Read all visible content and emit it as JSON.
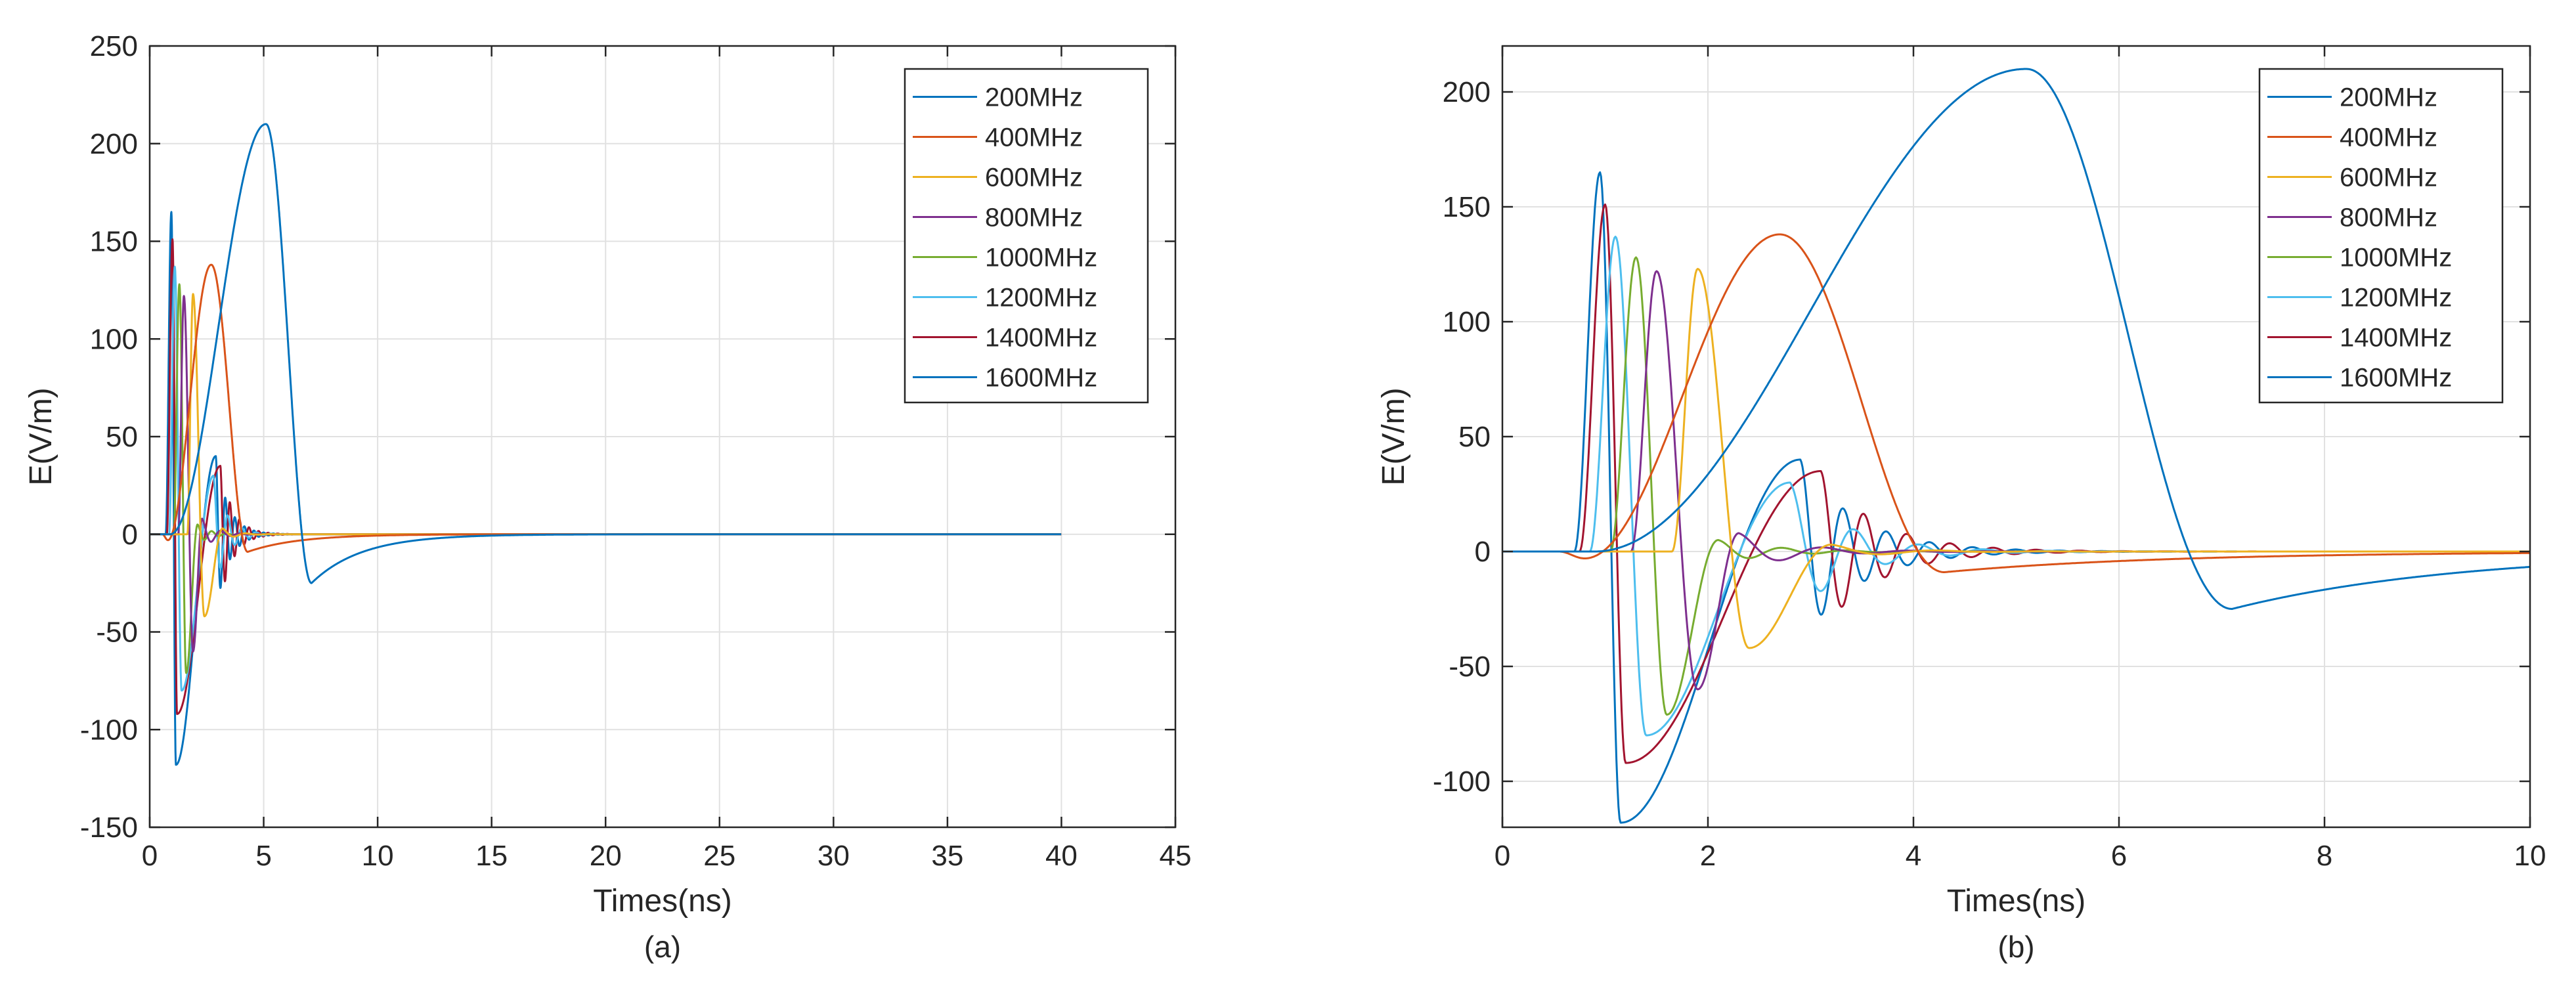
{
  "chart_data": [
    {
      "type": "line",
      "caption": "(a)",
      "xlabel": "Times(ns)",
      "ylabel": "E(V/m)",
      "xlim": [
        0,
        45
      ],
      "ylim": [
        -150,
        250
      ],
      "xticks": [
        0,
        5,
        10,
        15,
        20,
        25,
        30,
        35,
        40,
        45
      ],
      "yticks": [
        -150,
        -100,
        -50,
        0,
        50,
        100,
        150,
        200,
        250
      ],
      "grid": true,
      "legend_position": "top-right",
      "data_end_ns": 40,
      "series": [
        {
          "name": "200MHz",
          "color": "#0072bd",
          "peaks": [
            [
              0.9,
              0
            ],
            [
              5.1,
              210
            ],
            [
              7.1,
              -25
            ]
          ],
          "ringing": false
        },
        {
          "name": "400MHz",
          "color": "#d95319",
          "peaks": [
            [
              0.8,
              -3
            ],
            [
              2.7,
              138
            ],
            [
              4.3,
              -9
            ]
          ],
          "ringing": false
        },
        {
          "name": "600MHz",
          "color": "#edb120",
          "peaks": [
            [
              1.9,
              123
            ],
            [
              2.4,
              -42
            ],
            [
              3.2,
              3
            ]
          ],
          "ringing": true
        },
        {
          "name": "800MHz",
          "color": "#7e2f8e",
          "peaks": [
            [
              1.5,
              122
            ],
            [
              1.9,
              -60
            ],
            [
              2.3,
              8
            ]
          ],
          "ringing": true
        },
        {
          "name": "1000MHz",
          "color": "#77ac30",
          "peaks": [
            [
              1.3,
              128
            ],
            [
              1.6,
              -71
            ],
            [
              2.1,
              5
            ]
          ],
          "ringing": true
        },
        {
          "name": "1200MHz",
          "color": "#4dbeee",
          "peaks": [
            [
              1.1,
              137
            ],
            [
              1.4,
              -80
            ],
            [
              2.8,
              30
            ]
          ],
          "ringing": true
        },
        {
          "name": "1400MHz",
          "color": "#a2142f",
          "peaks": [
            [
              1.0,
              151
            ],
            [
              1.2,
              -92
            ],
            [
              3.1,
              35
            ]
          ],
          "ringing": true
        },
        {
          "name": "1600MHz",
          "color": "#0072bd",
          "peaks": [
            [
              0.95,
              165
            ],
            [
              1.15,
              -118
            ],
            [
              2.9,
              40
            ]
          ],
          "ringing": true
        }
      ]
    },
    {
      "type": "line",
      "caption": "(b)",
      "xlabel": "Times(ns)",
      "ylabel": "E(V/m)",
      "xlim": [
        0,
        10
      ],
      "ylim": [
        -120,
        220
      ],
      "xticks": [
        0,
        2,
        4,
        6,
        8,
        10
      ],
      "yticks": [
        -100,
        -50,
        0,
        50,
        100,
        150,
        200
      ],
      "grid": true,
      "legend_position": "top-right",
      "data_end_ns": 10,
      "series": [
        {
          "name": "200MHz",
          "color": "#0072bd",
          "peaks": [
            [
              0.9,
              0
            ],
            [
              5.1,
              210
            ],
            [
              7.1,
              -25
            ]
          ],
          "ringing": false
        },
        {
          "name": "400MHz",
          "color": "#d95319",
          "peaks": [
            [
              0.8,
              -3
            ],
            [
              2.7,
              138
            ],
            [
              4.3,
              -9
            ]
          ],
          "ringing": false
        },
        {
          "name": "600MHz",
          "color": "#edb120",
          "peaks": [
            [
              1.9,
              123
            ],
            [
              2.4,
              -42
            ],
            [
              3.2,
              3
            ]
          ],
          "ringing": true
        },
        {
          "name": "800MHz",
          "color": "#7e2f8e",
          "peaks": [
            [
              1.5,
              122
            ],
            [
              1.9,
              -60
            ],
            [
              2.3,
              8
            ]
          ],
          "ringing": true
        },
        {
          "name": "1000MHz",
          "color": "#77ac30",
          "peaks": [
            [
              1.3,
              128
            ],
            [
              1.6,
              -71
            ],
            [
              2.1,
              5
            ]
          ],
          "ringing": true
        },
        {
          "name": "1200MHz",
          "color": "#4dbeee",
          "peaks": [
            [
              1.1,
              137
            ],
            [
              1.4,
              -80
            ],
            [
              2.8,
              30
            ]
          ],
          "ringing": true
        },
        {
          "name": "1400MHz",
          "color": "#a2142f",
          "peaks": [
            [
              1.0,
              151
            ],
            [
              1.2,
              -92
            ],
            [
              3.1,
              35
            ]
          ],
          "ringing": true
        },
        {
          "name": "1600MHz",
          "color": "#0072bd",
          "peaks": [
            [
              0.95,
              165
            ],
            [
              1.15,
              -118
            ],
            [
              2.9,
              40
            ]
          ],
          "ringing": true
        }
      ]
    }
  ]
}
